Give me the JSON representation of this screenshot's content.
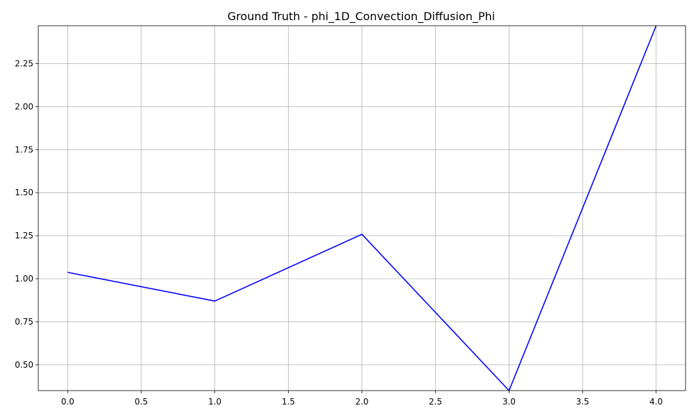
{
  "chart_data": {
    "type": "line",
    "title": "Ground Truth - phi_1D_Convection_Diffusion_Phi",
    "xlabel": "",
    "ylabel": "",
    "xlim": [
      -0.2,
      4.2
    ],
    "ylim": [
      0.35,
      2.47
    ],
    "x_ticks": [
      0.0,
      0.5,
      1.0,
      1.5,
      2.0,
      2.5,
      3.0,
      3.5,
      4.0
    ],
    "x_tick_labels": [
      "0.0",
      "0.5",
      "1.0",
      "1.5",
      "2.0",
      "2.5",
      "3.0",
      "3.5",
      "4.0"
    ],
    "y_ticks": [
      0.5,
      0.75,
      1.0,
      1.25,
      1.5,
      1.75,
      2.0,
      2.25
    ],
    "y_tick_labels": [
      "0.50",
      "0.75",
      "1.00",
      "1.25",
      "1.50",
      "1.75",
      "2.00",
      "2.25"
    ],
    "grid": true,
    "series": [
      {
        "color": "#0000ff",
        "x": [
          0,
          1,
          2,
          3,
          4
        ],
        "y": [
          1.037,
          0.87,
          1.258,
          0.35,
          2.47
        ]
      }
    ]
  }
}
